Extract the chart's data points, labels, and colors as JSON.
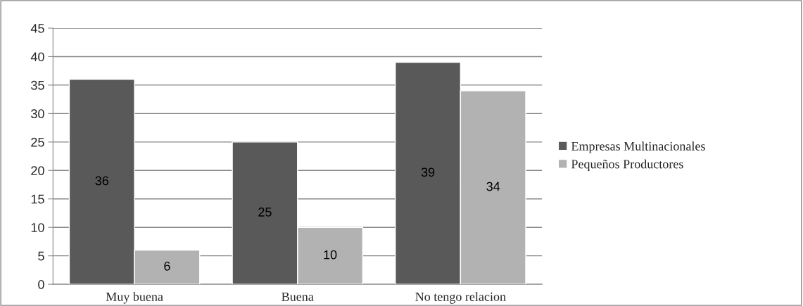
{
  "chart_data": {
    "type": "bar",
    "categories": [
      "Muy buena",
      "Buena",
      "No tengo relacion"
    ],
    "series": [
      {
        "name": "Empresas Multinacionales",
        "color": "#595959",
        "values": [
          36,
          25,
          39
        ]
      },
      {
        "name": "Pequeños Productores",
        "color": "#b2b2b2",
        "values": [
          6,
          10,
          34
        ]
      }
    ],
    "ylim": [
      0,
      45
    ],
    "yticks": [
      0,
      5,
      10,
      15,
      20,
      25,
      30,
      35,
      40,
      45
    ],
    "grid": "y",
    "legend": "right",
    "data_labels": true
  }
}
